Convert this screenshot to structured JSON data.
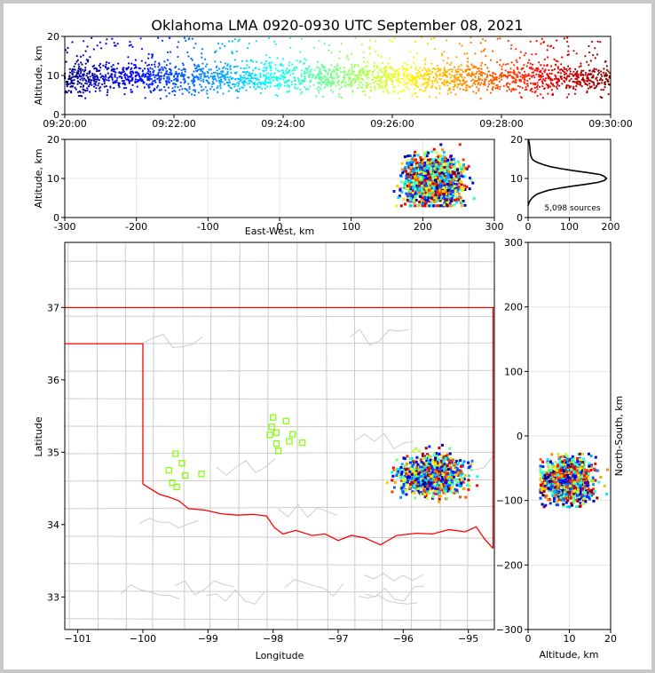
{
  "title": "Oklahoma LMA 0920-0930 UTC September 08, 2021",
  "source_count": "5,098 sources",
  "chart_data": [
    {
      "panel": "time-height",
      "type": "scatter",
      "xlabel": "",
      "ylabel": "Altitude, km",
      "x_ticks": [
        "09:20:00",
        "09:22:00",
        "09:24:00",
        "09:26:00",
        "09:28:00",
        "09:30:00"
      ],
      "x_range_minutes": [
        0,
        10
      ],
      "y_ticks": [
        "0",
        "10",
        "20"
      ],
      "ylim": [
        0,
        20
      ],
      "colorscale": "jet (time)",
      "altitude_core_km": [
        6,
        13
      ]
    },
    {
      "panel": "east-west-altitude",
      "type": "scatter",
      "xlabel": "East-West, km",
      "ylabel": "Altitude, km",
      "x_ticks": [
        "-300",
        "-200",
        "-100",
        "0",
        "100",
        "200",
        "300"
      ],
      "xlim": [
        -300,
        300
      ],
      "y_ticks": [
        "0",
        "10",
        "20"
      ],
      "ylim": [
        0,
        20
      ],
      "cluster_x_km": [
        165,
        265
      ],
      "cluster_z_km": [
        4,
        20
      ]
    },
    {
      "panel": "altitude-histogram",
      "type": "line",
      "xlabel": "",
      "ylabel": "",
      "x_ticks": [
        "0",
        "100",
        "200"
      ],
      "xlim": [
        0,
        200
      ],
      "y_ticks": [
        "0",
        "10",
        "20"
      ],
      "ylim": [
        0,
        20
      ],
      "profile": [
        [
          0,
          3
        ],
        [
          1,
          3.5
        ],
        [
          3,
          4
        ],
        [
          6,
          4.5
        ],
        [
          10,
          5
        ],
        [
          15,
          5.5
        ],
        [
          22,
          6
        ],
        [
          35,
          6.5
        ],
        [
          50,
          7
        ],
        [
          75,
          7.5
        ],
        [
          105,
          8
        ],
        [
          140,
          8.5
        ],
        [
          170,
          9
        ],
        [
          185,
          9.5
        ],
        [
          190,
          10
        ],
        [
          185,
          10.5
        ],
        [
          175,
          11
        ],
        [
          145,
          11.5
        ],
        [
          110,
          12
        ],
        [
          80,
          12.5
        ],
        [
          55,
          13
        ],
        [
          38,
          13.5
        ],
        [
          25,
          14
        ],
        [
          15,
          14.5
        ],
        [
          10,
          15
        ],
        [
          8,
          15.5
        ],
        [
          6,
          16
        ],
        [
          5,
          17
        ],
        [
          4,
          18
        ],
        [
          3,
          19
        ],
        [
          1,
          20
        ]
      ]
    },
    {
      "panel": "plan-view",
      "type": "scatter",
      "xlabel": "Longitude",
      "ylabel": "Latitude",
      "x_ticks": [
        "−101",
        "−100",
        "−99",
        "−98",
        "−97",
        "−96",
        "−95"
      ],
      "xlim": [
        -101.2,
        -94.6
      ],
      "y_ticks": [
        "33",
        "34",
        "35",
        "36",
        "37"
      ],
      "ylim": [
        32.55,
        37.9
      ],
      "storm_lon": [
        -96.15,
        -94.9
      ],
      "storm_lat": [
        34.3,
        34.95
      ],
      "stations": [
        [
          -99.5,
          34.98
        ],
        [
          -99.4,
          34.85
        ],
        [
          -99.6,
          34.75
        ],
        [
          -99.35,
          34.68
        ],
        [
          -99.55,
          34.58
        ],
        [
          -99.48,
          34.52
        ],
        [
          -99.1,
          34.7
        ],
        [
          -98.0,
          35.48
        ],
        [
          -98.02,
          35.35
        ],
        [
          -98.05,
          35.24
        ],
        [
          -97.95,
          35.27
        ],
        [
          -97.8,
          35.43
        ],
        [
          -97.7,
          35.25
        ],
        [
          -97.75,
          35.15
        ],
        [
          -97.55,
          35.13
        ],
        [
          -97.95,
          35.12
        ],
        [
          -97.92,
          35.02
        ]
      ],
      "border_color": "#ff0000",
      "county_color": "#cccccc",
      "station_color": "#7fff00"
    },
    {
      "panel": "altitude-north-south",
      "type": "scatter",
      "xlabel": "Altitude, km",
      "ylabel": "North-South, km",
      "x_ticks": [
        "0",
        "10",
        "20"
      ],
      "xlim": [
        0,
        20
      ],
      "y_ticks": [
        "300",
        "200",
        "100",
        "0",
        "−100",
        "−200",
        "−300"
      ],
      "ylim": [
        -300,
        300
      ],
      "cluster_y_km": [
        -105,
        -30
      ]
    }
  ]
}
